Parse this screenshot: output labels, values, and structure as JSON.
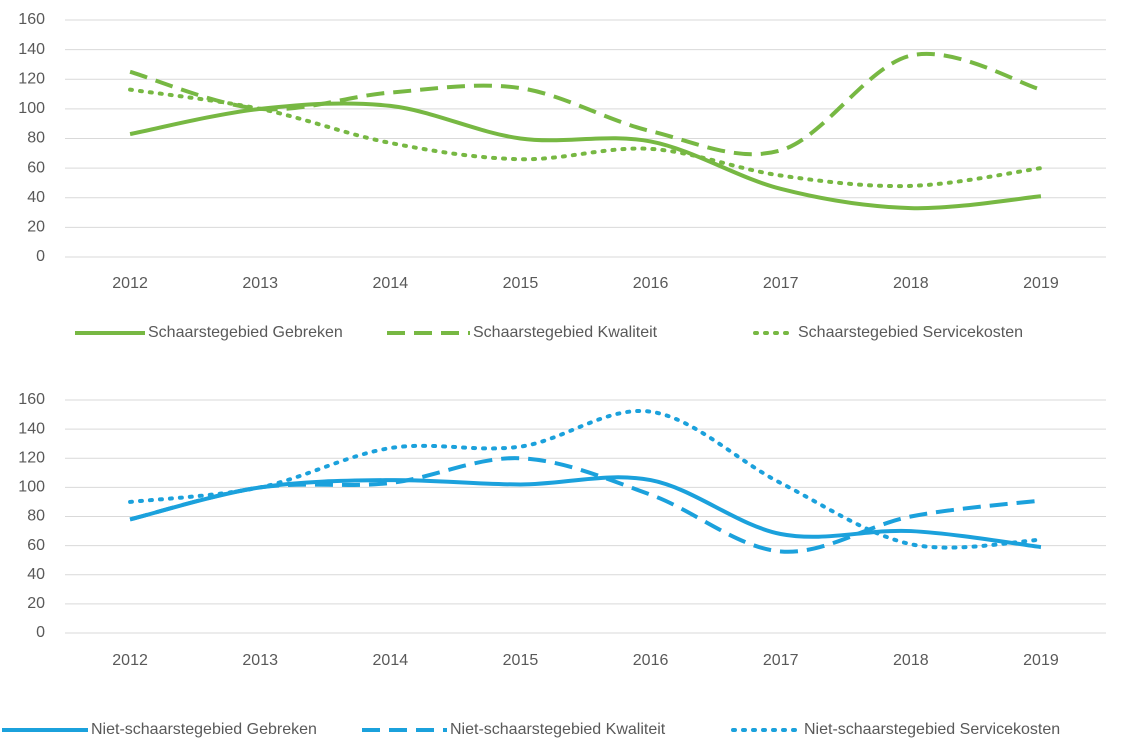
{
  "chart_data": [
    {
      "type": "line",
      "categories": [
        "2012",
        "2013",
        "2014",
        "2015",
        "2016",
        "2017",
        "2018",
        "2019"
      ],
      "series": [
        {
          "name": "Schaarstegebied Gebreken",
          "color": "#77b843",
          "style": "solid",
          "values": [
            83,
            100,
            102,
            80,
            78,
            46,
            33,
            41
          ]
        },
        {
          "name": "Schaarstegebied Kwaliteit",
          "color": "#77b843",
          "style": "dashed",
          "values": [
            125,
            100,
            111,
            114,
            85,
            72,
            136,
            113
          ]
        },
        {
          "name": "Schaarstegebied Servicekosten",
          "color": "#77b843",
          "style": "dotted",
          "values": [
            113,
            100,
            77,
            66,
            73,
            55,
            48,
            60
          ]
        }
      ],
      "ylim": [
        0,
        160
      ],
      "yticks": [
        0,
        20,
        40,
        60,
        80,
        100,
        120,
        140,
        160
      ],
      "grid": true,
      "legend": "bottom"
    },
    {
      "type": "line",
      "categories": [
        "2012",
        "2013",
        "2014",
        "2015",
        "2016",
        "2017",
        "2018",
        "2019"
      ],
      "series": [
        {
          "name": "Niet-schaarstegebied Gebreken",
          "color": "#1ba1dc",
          "style": "solid",
          "values": [
            78,
            100,
            105,
            102,
            105,
            68,
            70,
            59
          ]
        },
        {
          "name": "Niet-schaarstegebied Kwaliteit",
          "color": "#1ba1dc",
          "style": "dashed",
          "values": [
            78,
            100,
            103,
            120,
            95,
            56,
            80,
            91
          ]
        },
        {
          "name": "Niet-schaarstegebied Servicekosten",
          "color": "#1ba1dc",
          "style": "dotted",
          "values": [
            90,
            100,
            127,
            128,
            152,
            103,
            61,
            64
          ]
        }
      ],
      "ylim": [
        0,
        160
      ],
      "yticks": [
        0,
        20,
        40,
        60,
        80,
        100,
        120,
        140,
        160
      ],
      "grid": true,
      "legend": "bottom"
    }
  ]
}
